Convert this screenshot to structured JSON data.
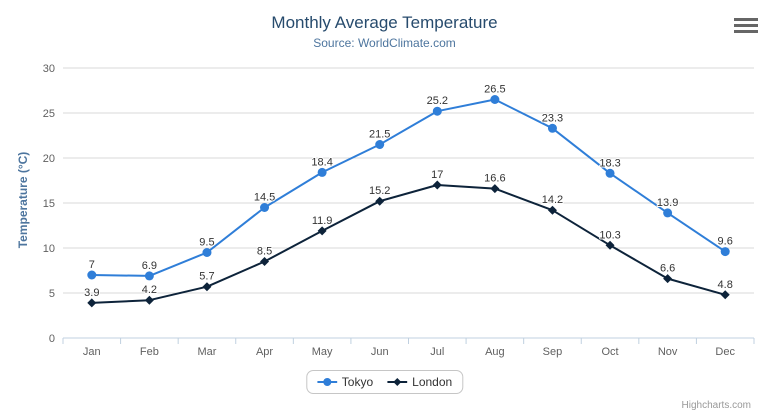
{
  "header": {
    "title": "Monthly Average Temperature",
    "subtitle": "Source: WorldClimate.com"
  },
  "chart_data": {
    "type": "line",
    "title": "Monthly Average Temperature",
    "subtitle": "Source: WorldClimate.com",
    "categories": [
      "Jan",
      "Feb",
      "Mar",
      "Apr",
      "May",
      "Jun",
      "Jul",
      "Aug",
      "Sep",
      "Oct",
      "Nov",
      "Dec"
    ],
    "series": [
      {
        "name": "Tokyo",
        "color": "#2f7ed8",
        "marker": "circle",
        "values": [
          7,
          6.9,
          9.5,
          14.5,
          18.4,
          21.5,
          25.2,
          26.5,
          23.3,
          18.3,
          13.9,
          9.6
        ]
      },
      {
        "name": "London",
        "color": "#0d233a",
        "marker": "diamond",
        "values": [
          3.9,
          4.2,
          5.7,
          8.5,
          11.9,
          15.2,
          17,
          16.6,
          14.2,
          10.3,
          6.6,
          4.8
        ]
      }
    ],
    "xlabel": "",
    "ylabel": "Temperature (°C)",
    "ylim": [
      0,
      30
    ],
    "ytick_step": 5,
    "grid": true,
    "data_labels": true,
    "legend_position": "bottom-center"
  },
  "legend": {
    "items": [
      "Tokyo",
      "London"
    ]
  },
  "credits": {
    "label": "Highcharts.com"
  },
  "export_menu": {
    "icon": "hamburger-menu-icon"
  },
  "colors": {
    "title": "#274b6d",
    "subtitle": "#4d759e",
    "axis_title": "#4d759e",
    "axis_label": "#606060",
    "grid_line": "#d8d8d8",
    "axis_line": "#c0d0e0",
    "data_label": "#333333",
    "legend_border": "#c6c6c6",
    "legend_text": "#333333",
    "credits": "#999999",
    "hamburger": "#666666"
  }
}
